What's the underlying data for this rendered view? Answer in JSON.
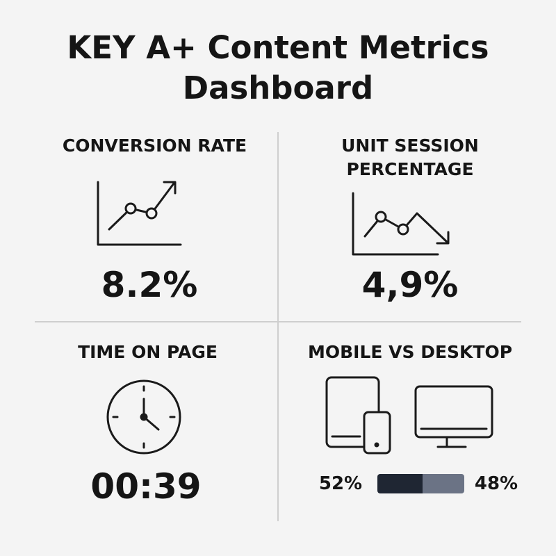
{
  "header": {
    "title": "KEY A+ Content Metrics Dashboard"
  },
  "cards": [
    {
      "label": "CONVERSION RATE",
      "value": "8.2%"
    },
    {
      "label": "UNIT SESSION PERCENTAGE",
      "value": "4,9%"
    },
    {
      "label": "TIME ON PAGE",
      "value": "00:39"
    },
    {
      "label": "MOBILE VS DESKTOP",
      "split": [
        {
          "value": 52,
          "label": "52%",
          "color": "#1f2633"
        },
        {
          "value": 48,
          "label": "48%",
          "color": "#6b7385"
        }
      ]
    }
  ]
}
